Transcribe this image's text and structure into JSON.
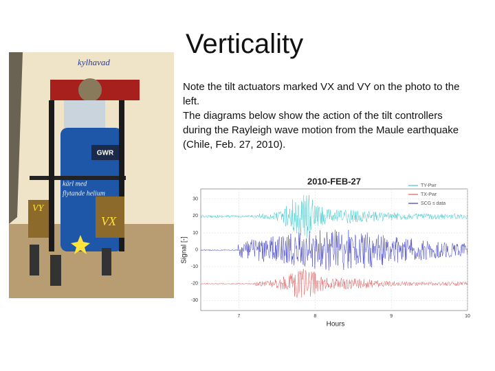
{
  "slide": {
    "title": "Verticality",
    "paragraphs": [
      "Note the tilt actuators marked VX and VY on the photo to the left.",
      "The diagrams below show the action of the tilt controllers during the Rayleigh wave motion from the Maule earthquake (Chile, Feb. 27, 2010)."
    ],
    "photo": {
      "labels": [
        "kylhavad",
        "GWR",
        "kärl med",
        "flytande helium",
        "VY",
        "VX"
      ]
    }
  },
  "chart_data": {
    "type": "seismogram",
    "title": "2010-FEB-27",
    "xlabel": "Hours",
    "ylabel": "Signal [-]",
    "xlim": [
      6.5,
      10
    ],
    "xticks": [
      7,
      8,
      9,
      10
    ],
    "ylim": [
      -36,
      36
    ],
    "yticks": [
      30,
      20,
      10,
      0,
      -10,
      -20,
      -30
    ],
    "legend": "upper right",
    "series": [
      {
        "name": "TY-Pwr",
        "color": "#3cc8cc"
      },
      {
        "name": "TX-Pwr",
        "color": "#e05a5a"
      },
      {
        "name": "SCG  s data",
        "color": "#3a3ac4"
      }
    ]
  }
}
